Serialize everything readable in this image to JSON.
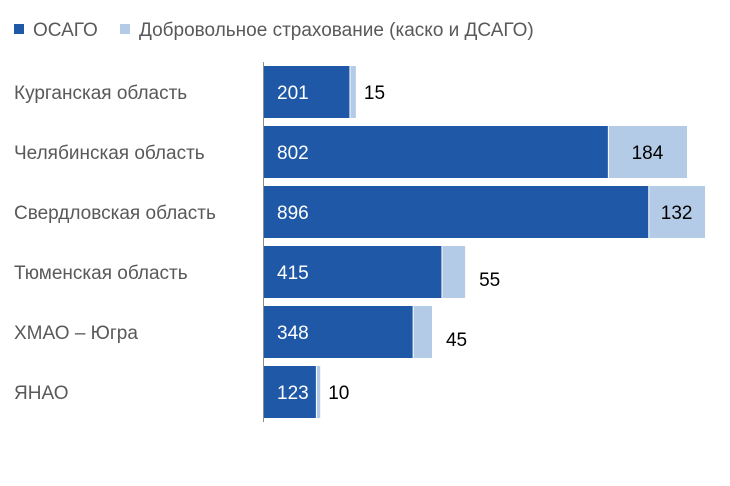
{
  "chart_data": {
    "type": "bar",
    "orientation": "horizontal",
    "stacked": true,
    "categories": [
      "Курганская область",
      "Челябинская область",
      "Свердловская область",
      "Тюменская область",
      "ХМАО – Югра",
      "ЯНАО"
    ],
    "series": [
      {
        "name": "ОСАГО",
        "values": [
          201,
          802,
          896,
          415,
          348,
          123
        ],
        "color": "#1F58A6"
      },
      {
        "name": "Добровольное страхование (каско и ДСАГО)",
        "values": [
          15,
          184,
          132,
          55,
          45,
          10
        ],
        "color": "#B4CBE7"
      }
    ],
    "title": "",
    "xlabel": "",
    "ylabel": "",
    "xlim": [
      0,
      1100
    ],
    "grid": false,
    "legend": "top-left",
    "data_labels": true
  }
}
